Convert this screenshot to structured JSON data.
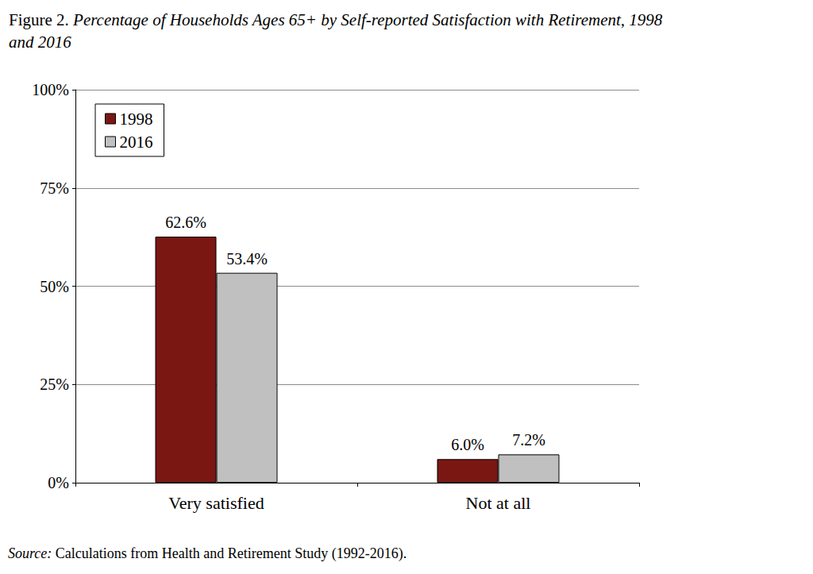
{
  "chart_data": {
    "type": "bar",
    "title": "Figure 2. Percentage of Households Ages 65+ by Self-reported Satisfaction with Retirement, 1998 and 2016",
    "source": "Source: Calculations from Health and Retirement Study (1992-2016).",
    "categories": [
      "Very satisfied",
      "Not at all"
    ],
    "series": [
      {
        "name": "1998",
        "color": "#7b1712",
        "values": [
          62.6,
          6.0
        ],
        "value_labels": [
          "62.6%",
          "6.0%"
        ]
      },
      {
        "name": "2016",
        "color": "#c0c0c0",
        "values": [
          53.4,
          7.2
        ],
        "value_labels": [
          "53.4%",
          "7.2%"
        ]
      }
    ],
    "ylim": [
      0,
      100
    ],
    "yticks": [
      {
        "value": 0,
        "label": "0%"
      },
      {
        "value": 25,
        "label": "25%"
      },
      {
        "value": 50,
        "label": "50%"
      },
      {
        "value": 75,
        "label": "75%"
      },
      {
        "value": 100,
        "label": "100%"
      }
    ],
    "grid": true,
    "legend": "top-left",
    "data_labels": true
  }
}
